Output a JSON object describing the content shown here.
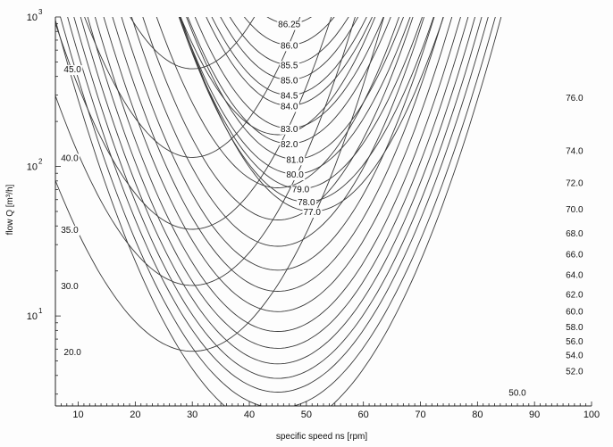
{
  "chart_data": {
    "type": "contour",
    "title": "",
    "xlabel": "specific speed ns [rpm]",
    "ylabel": "flow Q [m³/h]",
    "xlim": [
      6,
      100
    ],
    "ylim": [
      2.5,
      1000
    ],
    "x_scale": "linear",
    "y_scale": "log",
    "grid": false,
    "x_ticks": [
      10,
      20,
      30,
      40,
      50,
      60,
      70,
      80,
      90,
      100
    ],
    "y_ticks": [
      {
        "value": 10,
        "base": "10",
        "exp": "1"
      },
      {
        "value": 100,
        "base": "10",
        "exp": "2"
      },
      {
        "value": 1000,
        "base": "10",
        "exp": "3"
      }
    ],
    "line_color": "#3a3a3a",
    "contour_levels": [
      {
        "label": "86.25",
        "x": 47,
        "y": 900
      },
      {
        "label": "86.0",
        "x": 47,
        "y": 650
      },
      {
        "label": "85.5",
        "x": 47,
        "y": 480
      },
      {
        "label": "85.0",
        "x": 47,
        "y": 380
      },
      {
        "label": "84.5",
        "x": 47,
        "y": 300
      },
      {
        "label": "84.0",
        "x": 47,
        "y": 255
      },
      {
        "label": "83.0",
        "x": 47,
        "y": 180
      },
      {
        "label": "82.0",
        "x": 47,
        "y": 142
      },
      {
        "label": "81.0",
        "x": 48,
        "y": 112
      },
      {
        "label": "80.0",
        "x": 48,
        "y": 89
      },
      {
        "label": "79.0",
        "x": 49,
        "y": 71
      },
      {
        "label": "78.0",
        "x": 50,
        "y": 58
      },
      {
        "label": "77.0",
        "x": 51,
        "y": 50
      },
      {
        "label": "76.0",
        "x": 97,
        "y": 290
      },
      {
        "label": "74.0",
        "x": 97,
        "y": 128
      },
      {
        "label": "72.0",
        "x": 97,
        "y": 78
      },
      {
        "label": "70.0",
        "x": 97,
        "y": 52
      },
      {
        "label": "68.0",
        "x": 97,
        "y": 36
      },
      {
        "label": "66.0",
        "x": 97,
        "y": 26
      },
      {
        "label": "64.0",
        "x": 97,
        "y": 19
      },
      {
        "label": "62.0",
        "x": 97,
        "y": 14
      },
      {
        "label": "60.0",
        "x": 97,
        "y": 10.8
      },
      {
        "label": "58.0",
        "x": 97,
        "y": 8.5
      },
      {
        "label": "56.0",
        "x": 97,
        "y": 6.8
      },
      {
        "label": "54.0",
        "x": 97,
        "y": 5.5
      },
      {
        "label": "52.0",
        "x": 97,
        "y": 4.3
      },
      {
        "label": "50.0",
        "x": 87,
        "y": 3.1
      },
      {
        "label": "45.0",
        "x": 9,
        "y": 450
      },
      {
        "label": "40.0",
        "x": 8.5,
        "y": 115
      },
      {
        "label": "35.0",
        "x": 8.5,
        "y": 38
      },
      {
        "label": "30.0",
        "x": 8.5,
        "y": 16
      },
      {
        "label": "20.0",
        "x": 9,
        "y": 5.8
      }
    ]
  }
}
